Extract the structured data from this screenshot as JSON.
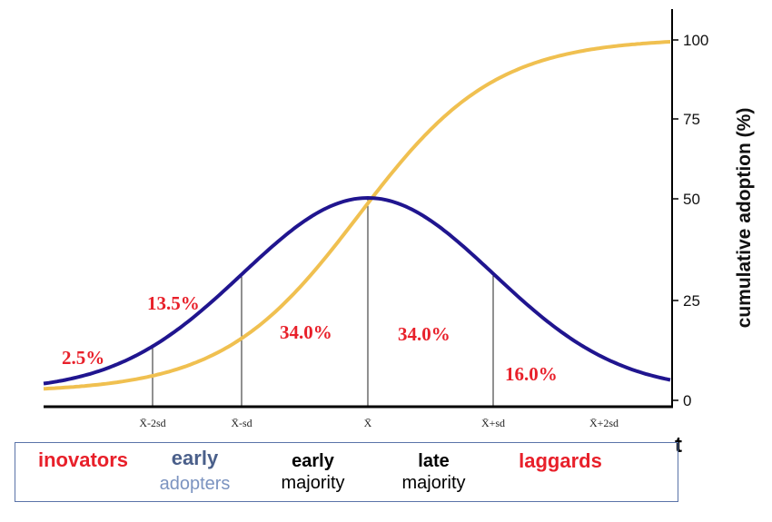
{
  "chart_data": {
    "type": "line",
    "title": "",
    "xlabel": "t",
    "ylabel": "cumulative adoption (%)",
    "ylim": [
      0,
      100
    ],
    "y_ticks": [
      "0",
      "25",
      "50",
      "75",
      "100"
    ],
    "x_ticks": [
      "X̄-2sd",
      "X̄-sd",
      "X̄",
      "X̄+sd",
      "X̄+2sd"
    ],
    "series": [
      {
        "name": "adoption distribution (bell curve)",
        "color": "#20158f"
      },
      {
        "name": "cumulative adoption (S-curve)",
        "color": "#f0c050"
      }
    ],
    "segments": [
      {
        "label": "2.5%",
        "group": "inovators"
      },
      {
        "label": "13.5%",
        "group": "early adopters"
      },
      {
        "label": "34.0%",
        "group": "early majority"
      },
      {
        "label": "34.0%",
        "group": "late majority"
      },
      {
        "label": "16.0%",
        "group": "laggards"
      }
    ]
  },
  "legend": {
    "inovators": "inovators",
    "early_adopters_1": "early",
    "early_adopters_2": "adopters",
    "early_majority_1": "early",
    "early_majority_2": "majority",
    "late_majority_1": "late",
    "late_majority_2": "majority",
    "laggards": "laggards"
  },
  "colors": {
    "red": "#e8202a",
    "navy": "#20158f",
    "gold": "#f0c050",
    "slate": "#4a5f8a",
    "lightblue": "#7b93c0"
  }
}
